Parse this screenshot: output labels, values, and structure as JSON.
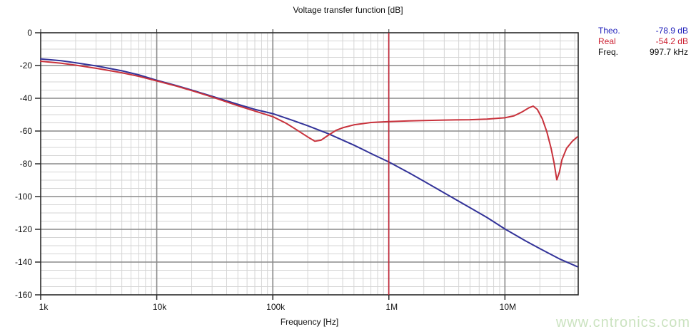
{
  "title": "Voltage transfer function [dB]",
  "legend": {
    "rows": [
      {
        "label": "Theo.",
        "value": "-78.9 dB",
        "color": "#2222bb"
      },
      {
        "label": "Real",
        "value": "-54.2 dB",
        "color": "#cc2233"
      },
      {
        "label": "Freq.",
        "value": "997.7 kHz",
        "color": "#111111"
      }
    ]
  },
  "watermark": "www.cntronics.com",
  "chart_data": {
    "type": "line",
    "title": "Voltage transfer function [dB]",
    "xlabel": "Frequency [Hz]",
    "ylabel": "",
    "x_scale": "log",
    "x_range_hz": [
      1000,
      42800000
    ],
    "y_range_db": [
      -160,
      0
    ],
    "y_major_step_db": 20,
    "y_minor_step_db": 5,
    "grid": true,
    "legend_position": "top-right",
    "x_tick_values_hz": [
      1000,
      10000,
      100000,
      1000000,
      10000000
    ],
    "x_tick_labels": [
      "1k",
      "10k",
      "100k",
      "1M",
      "10M"
    ],
    "y_tick_values_db": [
      0,
      -20,
      -40,
      -60,
      -80,
      -100,
      -120,
      -140,
      -160
    ],
    "y_tick_labels": [
      "0",
      "-20",
      "-40",
      "-60",
      "-80",
      "-100",
      "-120",
      "-140",
      "-160"
    ],
    "cursor": {
      "freq_hz": 997700,
      "freq_label": "997.7 kHz",
      "color": "#c22436",
      "theo_db": -78.9,
      "real_db": -54.2
    },
    "style": {
      "minor_grid": "#d5d5d5",
      "major_grid": "#8a8a8a",
      "border": "#2a2a2a",
      "tick_text": "#111111"
    },
    "series": [
      {
        "name": "Theo.",
        "color": "#333399",
        "points": [
          [
            1000,
            -16.0
          ],
          [
            1500,
            -17.1
          ],
          [
            2000,
            -18.3
          ],
          [
            3000,
            -20.2
          ],
          [
            5000,
            -23.2
          ],
          [
            7000,
            -25.7
          ],
          [
            10000,
            -29.0
          ],
          [
            15000,
            -32.4
          ],
          [
            20000,
            -35.0
          ],
          [
            30000,
            -38.8
          ],
          [
            50000,
            -43.7
          ],
          [
            70000,
            -46.8
          ],
          [
            100000,
            -49.4
          ],
          [
            150000,
            -53.6
          ],
          [
            200000,
            -56.8
          ],
          [
            300000,
            -61.6
          ],
          [
            500000,
            -68.6
          ],
          [
            700000,
            -73.7
          ],
          [
            1000000,
            -78.9
          ],
          [
            1500000,
            -85.6
          ],
          [
            2000000,
            -90.6
          ],
          [
            3000000,
            -97.8
          ],
          [
            5000000,
            -106.8
          ],
          [
            7000000,
            -112.8
          ],
          [
            10000000,
            -119.8
          ],
          [
            15000000,
            -127.0
          ],
          [
            20000000,
            -131.8
          ],
          [
            30000000,
            -138.3
          ],
          [
            42000000,
            -142.8
          ]
        ]
      },
      {
        "name": "Real",
        "color": "#c8323c",
        "points": [
          [
            1000,
            -17.4
          ],
          [
            1500,
            -18.6
          ],
          [
            2000,
            -19.8
          ],
          [
            3000,
            -21.7
          ],
          [
            5000,
            -24.4
          ],
          [
            7000,
            -26.6
          ],
          [
            10000,
            -29.4
          ],
          [
            15000,
            -32.7
          ],
          [
            20000,
            -35.3
          ],
          [
            30000,
            -39.2
          ],
          [
            50000,
            -44.5
          ],
          [
            70000,
            -47.8
          ],
          [
            100000,
            -51.2
          ],
          [
            130000,
            -55.2
          ],
          [
            160000,
            -59.2
          ],
          [
            200000,
            -63.6
          ],
          [
            230000,
            -66.2
          ],
          [
            260000,
            -65.6
          ],
          [
            300000,
            -62.6
          ],
          [
            350000,
            -59.6
          ],
          [
            400000,
            -58.0
          ],
          [
            500000,
            -56.2
          ],
          [
            700000,
            -54.8
          ],
          [
            1000000,
            -54.2
          ],
          [
            1500000,
            -53.8
          ],
          [
            2000000,
            -53.6
          ],
          [
            3000000,
            -53.3
          ],
          [
            5000000,
            -53.1
          ],
          [
            7000000,
            -52.7
          ],
          [
            10000000,
            -51.9
          ],
          [
            12000000,
            -50.7
          ],
          [
            14000000,
            -48.4
          ],
          [
            16000000,
            -45.9
          ],
          [
            17500000,
            -44.8
          ],
          [
            19000000,
            -46.8
          ],
          [
            21000000,
            -52.5
          ],
          [
            23000000,
            -60.5
          ],
          [
            25000000,
            -70.5
          ],
          [
            26500000,
            -79.5
          ],
          [
            28000000,
            -89.8
          ],
          [
            29500000,
            -85.0
          ],
          [
            31000000,
            -77.5
          ],
          [
            34000000,
            -70.5
          ],
          [
            38000000,
            -66.3
          ],
          [
            42000000,
            -63.6
          ]
        ]
      }
    ]
  }
}
